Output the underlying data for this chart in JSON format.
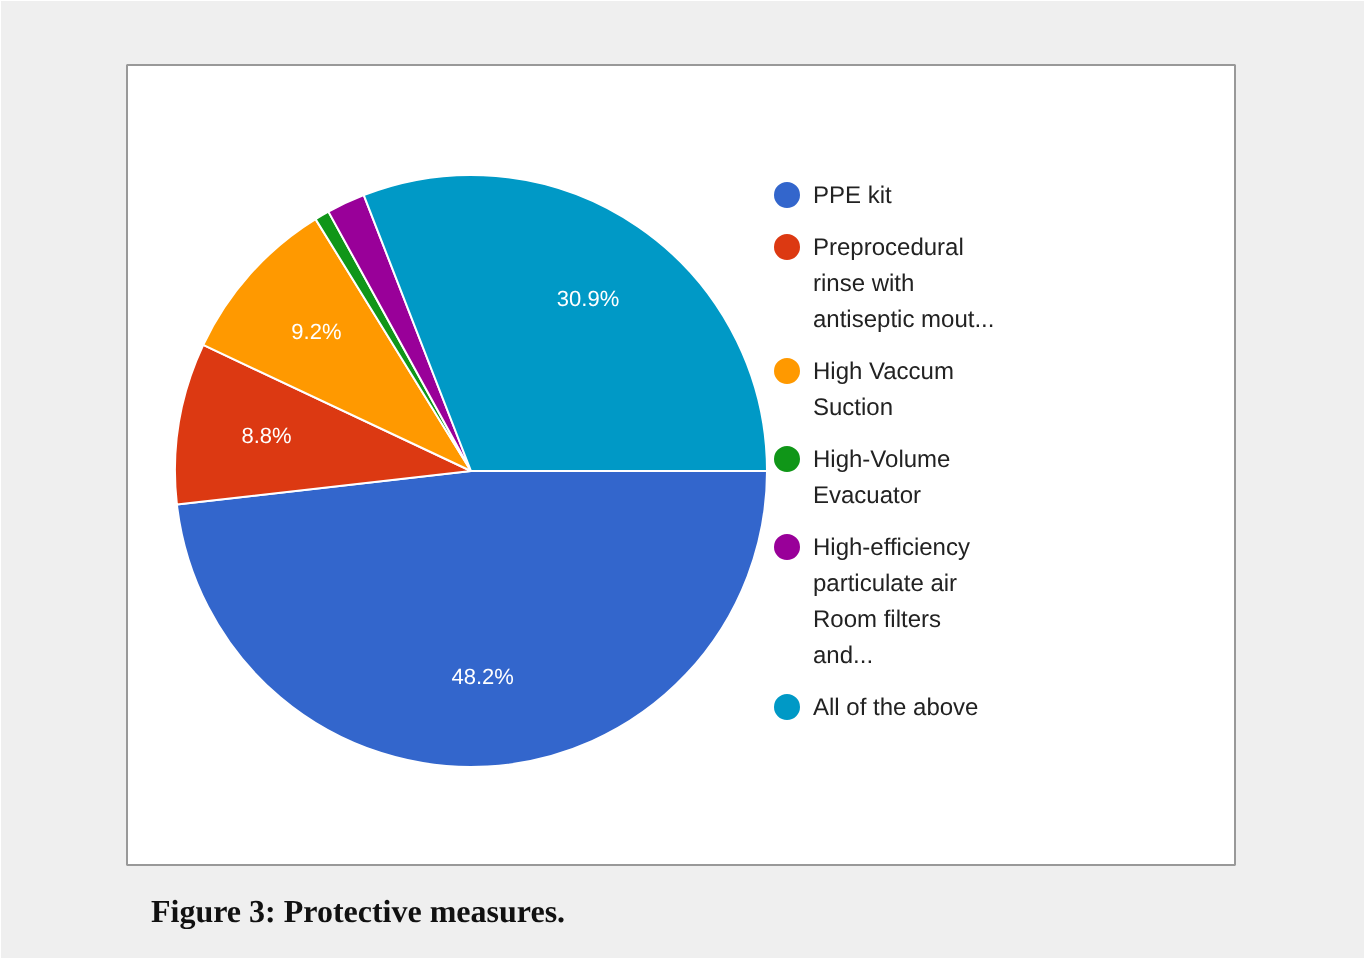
{
  "chart_data": {
    "type": "pie",
    "categories": [
      "PPE kit",
      "Preprocedural rinse with antiseptic mout...",
      "High Vaccum Suction",
      "High-Volume Evacuator",
      "High-efficiency particulate air Room filters and...",
      "All of the above"
    ],
    "values": [
      48.2,
      8.8,
      9.2,
      0.8,
      2.1,
      30.9
    ],
    "colors": [
      "#3366cc",
      "#dc3912",
      "#ff9900",
      "#109618",
      "#990099",
      "#0099c6"
    ],
    "value_labels": [
      "48.2%",
      "8.8%",
      "9.2%",
      null,
      null,
      "30.9%"
    ],
    "legend": "right",
    "annotations": [
      "Figure 3: Protective measures."
    ]
  }
}
